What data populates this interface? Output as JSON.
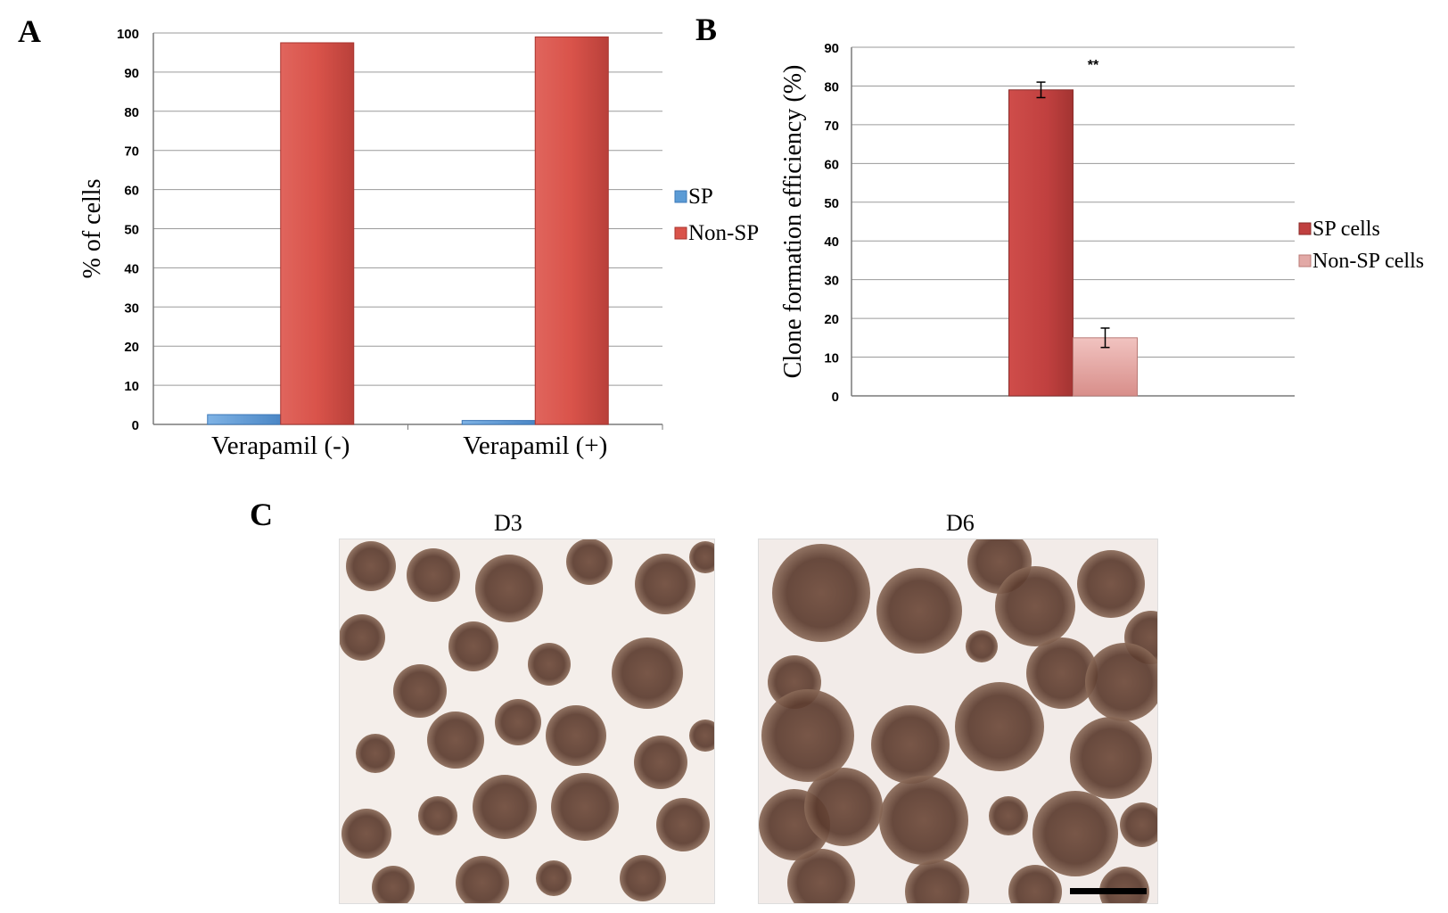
{
  "figure": {
    "panel_a_letter": "A",
    "panel_b_letter": "B",
    "panel_c_letter": "C",
    "micrograph_left_label": "D3",
    "micrograph_right_label": "D6"
  },
  "chart_data": [
    {
      "type": "bar",
      "title": "",
      "xlabel": "",
      "ylabel": "% of cells",
      "ylim": [
        0,
        100
      ],
      "yticks": [
        0,
        10,
        20,
        30,
        40,
        50,
        60,
        70,
        80,
        90,
        100
      ],
      "grid": true,
      "legend_position": "right",
      "categories": [
        "Verapamil (-)",
        "Verapamil (+)"
      ],
      "series": [
        {
          "name": "SP",
          "values": [
            2.5,
            1.0
          ],
          "color": "#5b9bd5"
        },
        {
          "name": "Non-SP",
          "values": [
            97.5,
            99.0
          ],
          "color": "#d9534a"
        }
      ]
    },
    {
      "type": "bar",
      "title": "",
      "xlabel": "",
      "ylabel": "Clone formation efficiency (%)",
      "ylim": [
        0,
        90
      ],
      "yticks": [
        0,
        10,
        20,
        30,
        40,
        50,
        60,
        70,
        80,
        90
      ],
      "grid": true,
      "legend_position": "right",
      "annotation": "**",
      "categories": [
        ""
      ],
      "series": [
        {
          "name": "SP cells",
          "values": [
            79
          ],
          "errors": [
            2
          ],
          "color": "#c0403f"
        },
        {
          "name": "Non-SP cells",
          "values": [
            15
          ],
          "errors": [
            2.5
          ],
          "color": "#e2a9a6"
        }
      ]
    }
  ]
}
